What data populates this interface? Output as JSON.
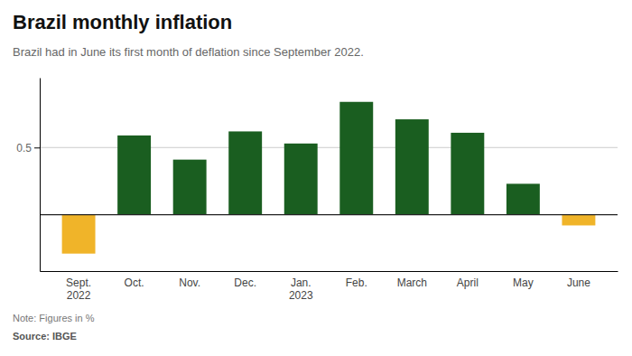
{
  "chart_data": {
    "type": "bar",
    "title": "Brazil monthly inflation",
    "subtitle": "Brazil had in June its first month of deflation since September 2022.",
    "annotations": [
      "Note: Figures in %",
      "Source: IBGE"
    ],
    "categories": [
      "Sept.\n2022",
      "Oct.",
      "Nov.",
      "Dec.",
      "Jan.\n2023",
      "Feb.",
      "March",
      "April",
      "May",
      "June"
    ],
    "values": [
      -0.29,
      0.59,
      0.41,
      0.62,
      0.53,
      0.84,
      0.71,
      0.61,
      0.23,
      -0.08
    ],
    "colors": [
      "#f0b429",
      "#1a5e20",
      "#1a5e20",
      "#1a5e20",
      "#1a5e20",
      "#1a5e20",
      "#1a5e20",
      "#1a5e20",
      "#1a5e20",
      "#f0b429"
    ],
    "ylim": [
      -0.42,
      1.02
    ],
    "yticks": [
      0.5
    ],
    "grid": true
  }
}
